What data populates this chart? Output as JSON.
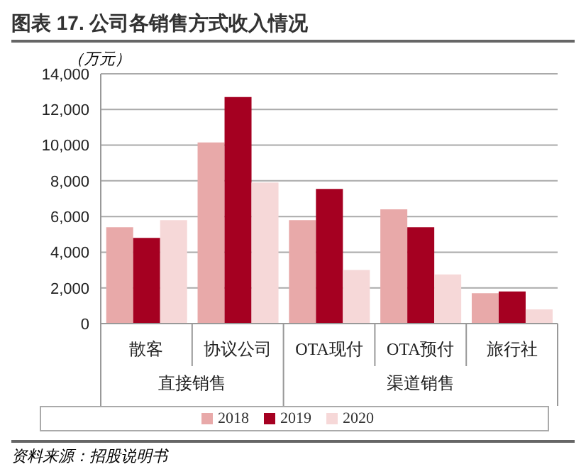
{
  "chart_data": {
    "type": "bar",
    "title": "图表 17. 公司各销售方式收入情况",
    "ylabel": "（万元）",
    "categories": [
      "散客",
      "协议公司",
      "OTA现付",
      "OTA预付",
      "旅行社"
    ],
    "series": [
      {
        "name": "2018",
        "color": "#e8a9a9",
        "values": [
          5400,
          10150,
          5800,
          6400,
          1700
        ]
      },
      {
        "name": "2019",
        "color": "#a50021",
        "values": [
          4800,
          12700,
          7550,
          5400,
          1800
        ]
      },
      {
        "name": "2020",
        "color": "#f6d8d8",
        "values": [
          5800,
          7900,
          3000,
          2750,
          800
        ]
      }
    ],
    "ylim": [
      0,
      14000
    ],
    "yticks": [
      0,
      {
        "value": 2000,
        "label": "2,000"
      },
      {
        "value": 4000,
        "label": "4,000"
      },
      {
        "value": 6000,
        "label": "6,000"
      },
      {
        "value": 8000,
        "label": "8,000"
      },
      {
        "value": 10000,
        "label": "10,000"
      },
      {
        "value": 12000,
        "label": "12,000"
      },
      {
        "value": 14000,
        "label": "14,000"
      }
    ],
    "grid": "y",
    "legend": "bottom",
    "annotations": [
      "直接销售",
      "渠道销售",
      "资料来源：招股说明书"
    ]
  }
}
